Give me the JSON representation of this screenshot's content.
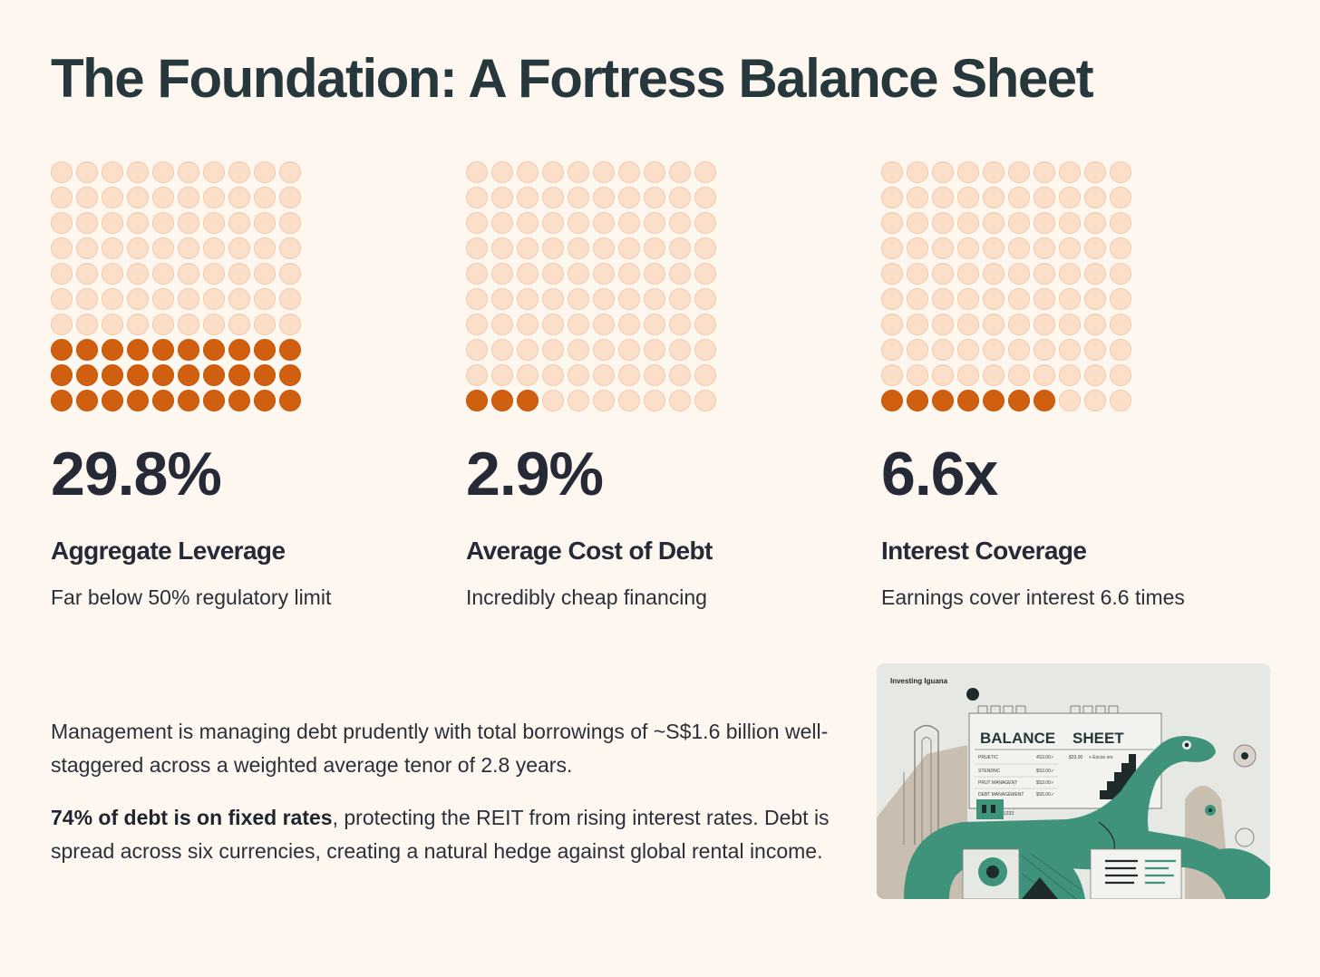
{
  "page": {
    "title": "The Foundation: A Fortress Balance Sheet"
  },
  "metrics": [
    {
      "value": "29.8%",
      "label": "Aggregate Leverage",
      "description": "Far below 50% regulatory limit",
      "filled_dots": 30,
      "total_dots": 100
    },
    {
      "value": "2.9%",
      "label": "Average Cost of Debt",
      "description": "Incredibly cheap financing",
      "filled_dots": 3,
      "total_dots": 100
    },
    {
      "value": "6.6x",
      "label": "Interest Coverage",
      "description": "Earnings cover interest 6.6 times",
      "filled_dots": 7,
      "total_dots": 100
    }
  ],
  "chart_data": [
    {
      "type": "waffle",
      "title": "Aggregate Leverage",
      "value_text": "29.8%",
      "filled": 30,
      "total": 100,
      "grid": [
        10,
        10
      ]
    },
    {
      "type": "waffle",
      "title": "Average Cost of Debt",
      "value_text": "2.9%",
      "filled": 3,
      "total": 100,
      "grid": [
        10,
        10
      ]
    },
    {
      "type": "waffle",
      "title": "Interest Coverage",
      "value_text": "6.6x",
      "filled": 7,
      "total": 100,
      "grid": [
        10,
        10
      ]
    }
  ],
  "body": {
    "paragraph1": "Management is managing debt prudently with total borrowings of ~S$1.6 billion well-staggered across a weighted average tenor of 2.8 years.",
    "paragraph2_bold": "74% of debt is on fixed rates",
    "paragraph2_rest": ", protecting the REIT from rising interest rates. Debt is spread across six currencies, creating a natural hedge against global rental income."
  },
  "illustration": {
    "brand": "Investing Iguana",
    "sign_word1": "BALANCE",
    "sign_word2": "SHEET",
    "rows": [
      {
        "label": "PRUETIC",
        "amount": "4S3.00✓"
      },
      {
        "label": "STENDNC",
        "amount": "$S3.00✓"
      },
      {
        "label": "PRUT MANAGENT",
        "amount": "$S3.00✓"
      },
      {
        "label": "DEBT MANAGEMENT",
        "amount": "$S5.00✓"
      }
    ],
    "extra_amount": "$33.00",
    "extra_note": "+ Excoo ors",
    "small_code": "1233",
    "colors": {
      "green": "#3f937a",
      "beige": "#c9bfb1",
      "dark": "#1f2b2a",
      "panel": "#e6e8e3"
    }
  },
  "colors": {
    "background": "#fdf7f0",
    "dot_empty": "#fbdfc9",
    "dot_filled": "#d15f10",
    "heading": "#26383b"
  }
}
